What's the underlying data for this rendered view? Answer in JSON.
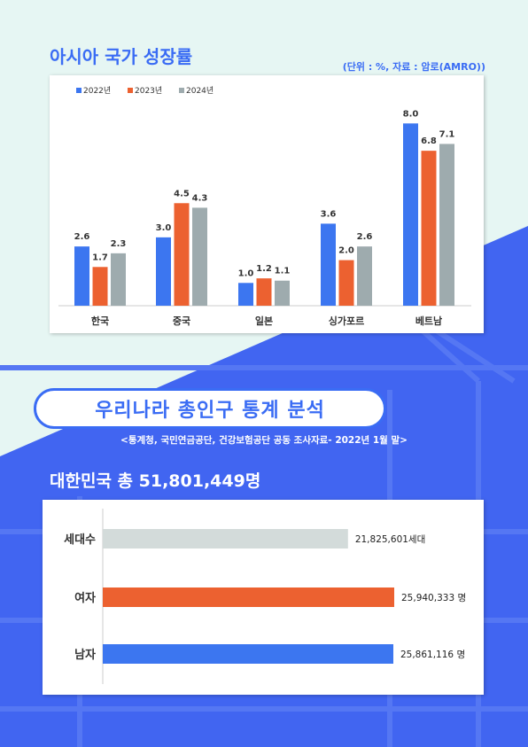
{
  "section1": {
    "title": "아시아 국가 성장률",
    "unit_note": "(단위 : %, 자료 : 암로(AMRO))"
  },
  "section2": {
    "banner": "우리나라 총인구 통계 분석",
    "source": "<통계청, 국민연금공단, 건강보험공단 공동 조사자료- 2022년 1월 말>",
    "total_label": "대한민국 총 51,801,449명"
  },
  "colors": {
    "accent": "#3a6cf4",
    "blue": "#3c76f0",
    "orange": "#ec6130",
    "gray": "#9eabae",
    "light_gray": "#d3dbda",
    "background": "#e6f6f3",
    "background_blue": "#4165f1"
  },
  "chart_data": [
    {
      "type": "bar",
      "title": "아시아 국가 성장률",
      "categories": [
        "한국",
        "중국",
        "일본",
        "싱가포르",
        "베트남"
      ],
      "series": [
        {
          "name": "2022년",
          "values": [
            2.6,
            3.0,
            1.0,
            3.6,
            8.0
          ],
          "color": "#3c76f0"
        },
        {
          "name": "2023년",
          "values": [
            1.7,
            4.5,
            1.2,
            2.0,
            6.8
          ],
          "color": "#ec6130"
        },
        {
          "name": "2024년",
          "values": [
            2.3,
            4.3,
            1.1,
            2.6,
            7.1
          ],
          "color": "#9eabae"
        }
      ],
      "value_labels": [
        [
          "2.6",
          "3.0",
          "1.0",
          "3.6",
          "8.0"
        ],
        [
          "1.7",
          "4.5",
          "1.2",
          "2.0",
          "6.8"
        ],
        [
          "2.3",
          "4.3",
          "1.1",
          "2.6",
          "7.1"
        ]
      ],
      "ylim": [
        0,
        8.4
      ],
      "legend": "top-left",
      "grid": false
    },
    {
      "type": "bar",
      "orientation": "horizontal",
      "title": "대한민국 총 51,801,449명",
      "categories": [
        "세대수",
        "여자",
        "남자"
      ],
      "values": [
        21825601,
        25940333,
        25861116
      ],
      "value_labels": [
        "21,825,601세대",
        "25,940,333 명",
        "25,861,116 명"
      ],
      "colors": [
        "#d3dbda",
        "#ec6130",
        "#3c76f0"
      ],
      "xlim": [
        0,
        27000000
      ],
      "grid": false
    }
  ]
}
